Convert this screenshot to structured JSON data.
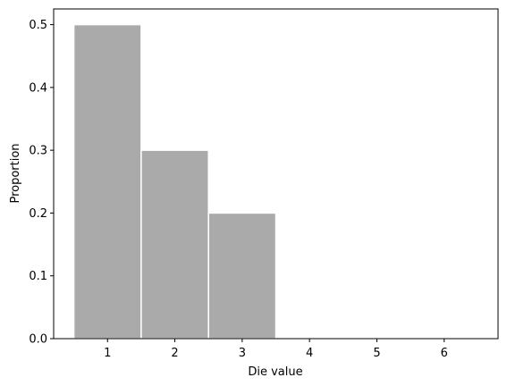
{
  "chart_data": {
    "type": "bar",
    "categories": [
      "1",
      "2",
      "3",
      "4",
      "5",
      "6"
    ],
    "values": [
      0.5,
      0.3,
      0.2,
      0.0,
      0.0,
      0.0
    ],
    "title": "",
    "xlabel": "Die value",
    "ylabel": "Proportion",
    "xlim": [
      0.2,
      6.8
    ],
    "ylim": [
      0.0,
      0.525
    ],
    "y_ticks": [
      0.0,
      0.1,
      0.2,
      0.3,
      0.4,
      0.5
    ],
    "y_tick_labels": [
      "0.0",
      "0.1",
      "0.2",
      "0.3",
      "0.4",
      "0.5"
    ],
    "x_ticks": [
      1,
      2,
      3,
      4,
      5,
      6
    ],
    "bar_width": 1.0,
    "grid": false,
    "bar_color": "#aaaaaa",
    "bar_edge_color": "#ffffff"
  }
}
